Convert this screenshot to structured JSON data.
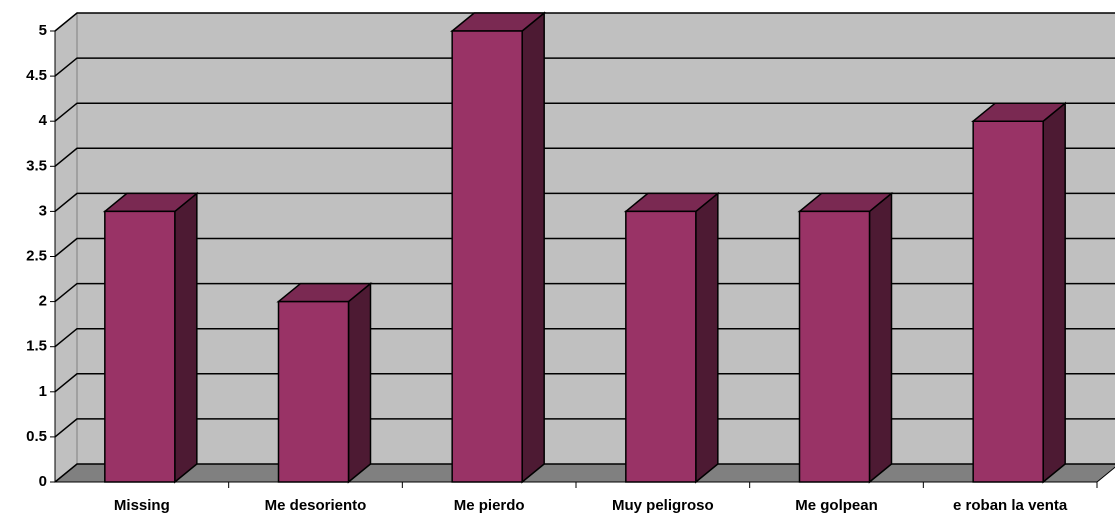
{
  "chart_data": {
    "type": "bar3d",
    "categories": [
      "Missing",
      "Me desoriento",
      "Me pierdo",
      "Muy peligroso",
      "Me golpean",
      "e roban la venta"
    ],
    "values": [
      3,
      2,
      5,
      3,
      3,
      4
    ],
    "color": "#993366",
    "ylim": [
      0,
      5
    ],
    "yticks": [
      0,
      0.5,
      1,
      1.5,
      2,
      2.5,
      3,
      3.5,
      4,
      4.5,
      5
    ],
    "grid": true
  }
}
